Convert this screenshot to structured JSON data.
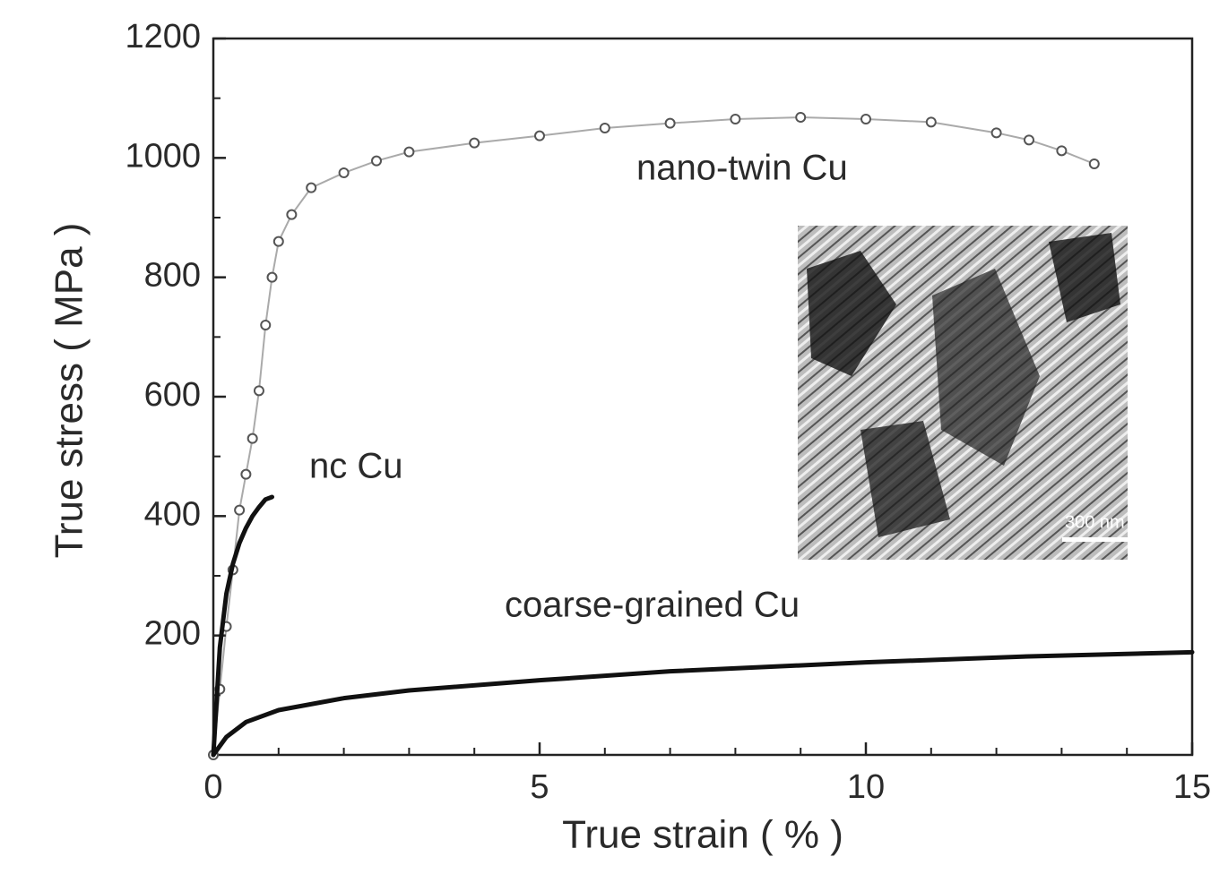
{
  "chart_data": {
    "type": "line",
    "x_label": "True strain ( % )",
    "y_label": "True stress ( MPa )",
    "inset_label": "300 nm",
    "xlim": [
      0,
      15
    ],
    "xticks": [
      0,
      5,
      10,
      15
    ],
    "xminorticks": [
      1,
      2,
      3,
      4,
      6,
      7,
      8,
      9,
      11,
      12,
      13,
      14
    ],
    "ylim": [
      0,
      1200
    ],
    "yticks": [
      200,
      400,
      600,
      800,
      1000,
      1200
    ],
    "yminorticks": [
      100,
      300,
      500,
      700,
      900,
      1100
    ],
    "series": [
      {
        "name": "nano-twin Cu",
        "color": "#555555",
        "marker": "circle",
        "x": [
          0,
          0.1,
          0.2,
          0.3,
          0.4,
          0.5,
          0.6,
          0.7,
          0.8,
          0.9,
          1.0,
          1.2,
          1.5,
          2,
          2.5,
          3,
          4,
          5,
          6,
          7,
          8,
          9,
          10,
          11,
          12,
          12.5,
          13,
          13.5
        ],
        "values": [
          0,
          110,
          215,
          310,
          410,
          470,
          530,
          610,
          720,
          800,
          860,
          905,
          950,
          975,
          995,
          1010,
          1025,
          1037,
          1050,
          1058,
          1065,
          1068,
          1065,
          1060,
          1042,
          1030,
          1012,
          990
        ]
      },
      {
        "name": "nc Cu",
        "color": "#111111",
        "marker": "none",
        "x": [
          0,
          0.1,
          0.2,
          0.3,
          0.4,
          0.5,
          0.6,
          0.7,
          0.8,
          0.9
        ],
        "values": [
          0,
          180,
          270,
          320,
          355,
          380,
          400,
          415,
          428,
          432
        ]
      },
      {
        "name": "coarse-grained Cu",
        "color": "#111111",
        "marker": "none",
        "x": [
          0,
          0.2,
          0.5,
          1,
          2,
          3,
          5,
          7,
          10,
          12.5,
          15
        ],
        "values": [
          0,
          30,
          55,
          75,
          95,
          108,
          125,
          140,
          155,
          165,
          172
        ]
      }
    ]
  }
}
